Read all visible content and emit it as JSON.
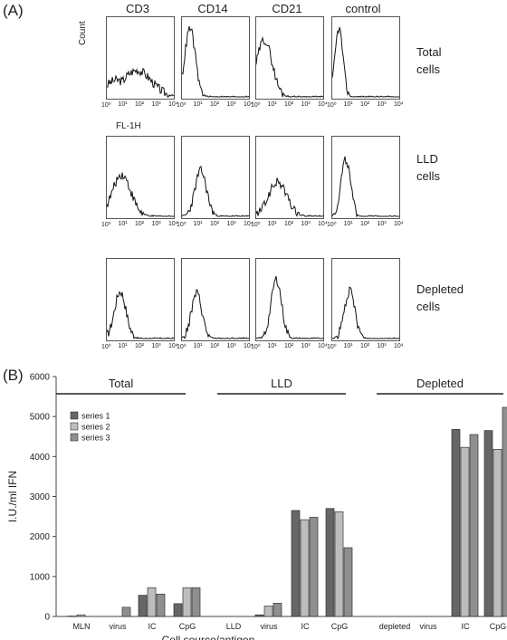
{
  "panel_a": {
    "label": "(A)",
    "columns": [
      "CD3",
      "CD14",
      "CD21",
      "control"
    ],
    "rows": [
      {
        "label_line1": "Total",
        "label_line2": "cells"
      },
      {
        "label_line1": "LLD",
        "label_line2": "cells"
      },
      {
        "label_line1": "Depleted",
        "label_line2": "cells"
      }
    ],
    "y_axis_label": "Count",
    "x_axis_label": "FL-1H",
    "x_ticks": [
      "10⁰",
      "10¹",
      "10²",
      "10³",
      "10⁴"
    ]
  },
  "panel_b": {
    "label": "(B)",
    "group_labels": [
      "Total",
      "LLD",
      "Depleted"
    ],
    "xlabel": "Cell source/antigen"
  },
  "chart_data": {
    "type": "bar",
    "title": "",
    "ylabel": "I.U./ml IFN",
    "xlabel": "Cell source/antigen",
    "ylim": [
      0,
      6000
    ],
    "yticks": [
      0,
      1000,
      2000,
      3000,
      4000,
      5000,
      6000
    ],
    "grid": false,
    "legend_position": "top-left",
    "categories": [
      "MLN",
      "virus",
      "IC",
      "CpG",
      "LLD",
      "virus",
      "IC",
      "CpG",
      "depleted",
      "virus",
      "IC",
      "CpG"
    ],
    "series": [
      {
        "name": "series 1",
        "color": "#666666",
        "values": [
          10,
          0,
          530,
          320,
          0,
          40,
          2650,
          2700,
          0,
          0,
          4680,
          4650
        ]
      },
      {
        "name": "series 2",
        "color": "#bdbdbd",
        "values": [
          40,
          0,
          720,
          720,
          0,
          260,
          2420,
          2620,
          0,
          0,
          4230,
          4180
        ]
      },
      {
        "name": "series 3",
        "color": "#8f8f8f",
        "values": [
          0,
          230,
          560,
          720,
          0,
          330,
          2480,
          1720,
          0,
          0,
          4550,
          5230
        ]
      }
    ]
  }
}
